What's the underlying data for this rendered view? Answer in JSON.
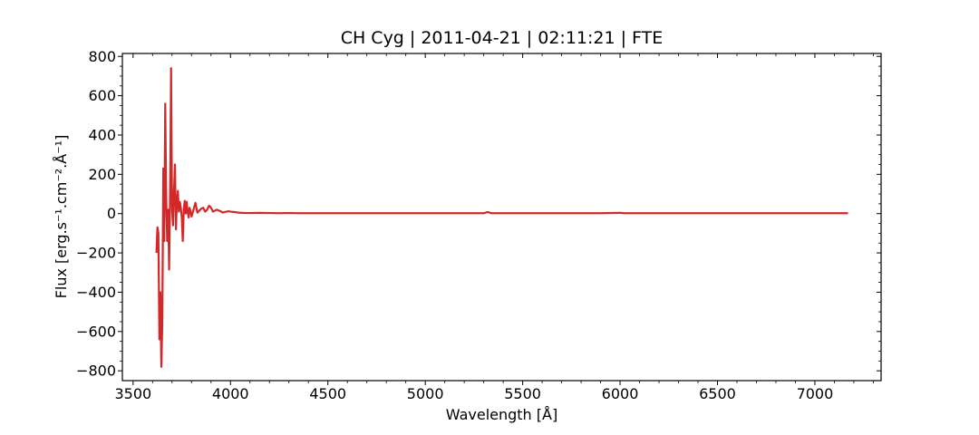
{
  "chart_data": {
    "type": "line",
    "title": "CH Cyg | 2011-04-21 | 02:11:21 | FTE",
    "xlabel": "Wavelength [Å]",
    "ylabel": "Flux [erg.s⁻¹.cm⁻².Å⁻¹]",
    "xlim": [
      3445,
      7340
    ],
    "ylim": [
      -850,
      815
    ],
    "x_ticks": [
      3500,
      4000,
      4500,
      5000,
      5500,
      6000,
      6500,
      7000
    ],
    "y_ticks": [
      -800,
      -600,
      -400,
      -200,
      0,
      200,
      400,
      600,
      800
    ],
    "x_tick_labels": [
      "3500",
      "4000",
      "4500",
      "5000",
      "5500",
      "6000",
      "6500",
      "7000"
    ],
    "y_tick_labels": [
      "−800",
      "−600",
      "−400",
      "−200",
      "0",
      "200",
      "400",
      "600",
      "800"
    ],
    "grid": false,
    "series": [
      {
        "color": "#d62728",
        "x": [
          3620,
          3625,
          3630,
          3635,
          3640,
          3645,
          3650,
          3655,
          3660,
          3665,
          3670,
          3675,
          3680,
          3685,
          3690,
          3695,
          3700,
          3705,
          3710,
          3715,
          3720,
          3725,
          3730,
          3735,
          3740,
          3745,
          3750,
          3755,
          3760,
          3765,
          3770,
          3775,
          3780,
          3785,
          3790,
          3795,
          3800,
          3810,
          3820,
          3830,
          3840,
          3850,
          3860,
          3870,
          3880,
          3890,
          3900,
          3910,
          3920,
          3930,
          3940,
          3950,
          3960,
          3970,
          3980,
          3990,
          4000,
          4020,
          4040,
          4060,
          4080,
          4100,
          4150,
          4200,
          4250,
          4300,
          4350,
          4400,
          4500,
          4600,
          4700,
          4800,
          4900,
          5000,
          5100,
          5200,
          5300,
          5320,
          5340,
          5400,
          5500,
          5600,
          5700,
          5800,
          5900,
          6000,
          6020,
          6100,
          6200,
          6300,
          6400,
          6500,
          6600,
          6700,
          6800,
          6900,
          7000,
          7100,
          7170
        ],
        "y": [
          -200,
          -70,
          -100,
          -640,
          -400,
          -780,
          -560,
          230,
          -140,
          560,
          80,
          -140,
          20,
          -285,
          100,
          740,
          20,
          -60,
          120,
          250,
          -80,
          60,
          115,
          10,
          60,
          30,
          -20,
          -140,
          20,
          65,
          0,
          60,
          10,
          -20,
          30,
          10,
          -15,
          20,
          55,
          5,
          15,
          25,
          30,
          10,
          20,
          40,
          30,
          10,
          15,
          20,
          15,
          12,
          5,
          8,
          10,
          12,
          10,
          8,
          5,
          4,
          3,
          3,
          4,
          3,
          2,
          3,
          2,
          2,
          2,
          2,
          2,
          2,
          2,
          2,
          2,
          2,
          2,
          8,
          2,
          2,
          2,
          2,
          2,
          2,
          2,
          4,
          2,
          2,
          2,
          2,
          2,
          2,
          2,
          2,
          2,
          2,
          2,
          2,
          2
        ]
      }
    ]
  }
}
